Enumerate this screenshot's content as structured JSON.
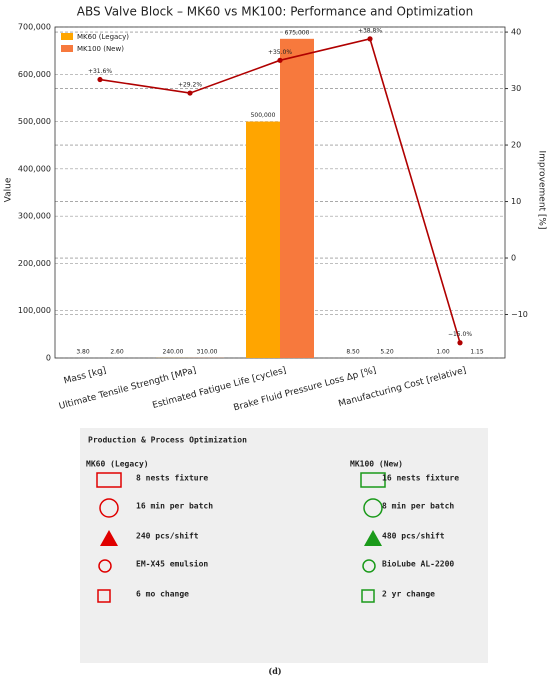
{
  "chart_data": {
    "type": "bar",
    "title": "ABS Valve Block – MK60 vs MK100: Performance and Optimization",
    "y_label": "Value",
    "y2_label": "Improvement [%]",
    "categories": [
      "Mass [kg]",
      "Ultimate Tensile Strength [MPa]",
      "Estimated Fatigue Life [cycles]",
      "Brake Fluid Pressure Loss Δp [%]",
      "Manufacturing Cost [relative]"
    ],
    "series": [
      {
        "name": "MK60 (Legacy)",
        "color": "#ffa500",
        "values": [
          3.8,
          240,
          500000,
          8.5,
          1.0
        ],
        "value_labels": [
          "3.80",
          "240.00",
          "500,000",
          "8.50",
          "1.00"
        ]
      },
      {
        "name": "MK100 (New)",
        "color": "#f7793d",
        "values": [
          2.6,
          310,
          675000,
          5.2,
          1.15
        ],
        "value_labels": [
          "2.60",
          "310.00",
          "675,000",
          "5.20",
          "1.15"
        ]
      },
      {
        "type": "line",
        "axis": "y2",
        "color": "#b00000",
        "values": [
          31.6,
          29.2,
          35.0,
          38.8,
          -15.0
        ],
        "value_labels": [
          "+31.6%",
          "+29.2%",
          "+35.0%",
          "+38.8%",
          "−15.0%"
        ]
      }
    ],
    "ylim": [
      0,
      700000
    ],
    "yticks": [
      0,
      {
        "value": 100000,
        "label": "100,000"
      },
      {
        "value": 200000,
        "label": "200,000"
      },
      {
        "value": 300000,
        "label": "300,000"
      },
      {
        "value": 400000,
        "label": "400,000"
      },
      {
        "value": 500000,
        "label": "500,000"
      },
      {
        "value": 600000,
        "label": "600,000"
      },
      {
        "value": 700000,
        "label": "700,000"
      }
    ],
    "y2lim": [
      -17.7,
      40.9
    ],
    "y2ticks": [
      {
        "value": -10,
        "label": "−10"
      },
      0,
      10,
      20,
      30,
      40
    ],
    "grid": true,
    "legend": "upper-left"
  },
  "panel": {
    "title": "Production & Process Optimization",
    "columns": [
      {
        "header": "MK60 (Legacy)",
        "color": "#e00000",
        "items": [
          "8 nests fixture",
          "16 min per batch",
          "240 pcs/shift",
          "EM-X45 emulsion",
          "6 mo change"
        ]
      },
      {
        "header": "MK100 (New)",
        "color": "#1a9a1a",
        "items": [
          "16 nests fixture",
          "8 min per batch",
          "480 pcs/shift",
          "BioLube AL-2200",
          "2 yr change"
        ]
      }
    ]
  },
  "caption": "(d)"
}
